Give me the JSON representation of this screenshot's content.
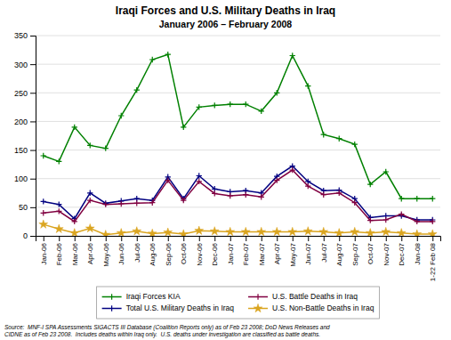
{
  "chart_data": {
    "type": "line",
    "title": "Iraqi Forces and U.S. Military Deaths in Iraq",
    "subtitle": "January 2006 – February 2008",
    "annotations": [
      "Source:  MNF-I SPA Assessments SIGACTS III Database (Coalition Reports only) as of Feb 23 2008; DoD News Releases and\nCIDNE as of Feb 23 2008.  Includes deaths within Iraq only.  U.S. deaths under investigation are classified as battle deaths."
    ],
    "categories": [
      "Jan-06",
      "Feb-06",
      "Mar-06",
      "Apr-06",
      "May-06",
      "Jun-06",
      "Jul-06",
      "Aug-06",
      "Sep-06",
      "Oct-06",
      "Nov-06",
      "Dec-06",
      "Jan-07",
      "Feb-07",
      "Mar-07",
      "Apr-07",
      "May-07",
      "Jun-07",
      "Jul-07",
      "Aug-07",
      "Sep-07",
      "Oct-07",
      "Nov-07",
      "Dec-07",
      "Jan-08",
      "1-22 Feb 08"
    ],
    "series": [
      {
        "name": "Iraqi Forces KIA",
        "color": "#008000",
        "marker": "plus",
        "values": [
          140,
          130,
          190,
          158,
          153,
          210,
          255,
          308,
          317,
          190,
          225,
          228,
          230,
          230,
          218,
          250,
          315,
          262,
          177,
          170,
          160,
          90,
          112,
          65,
          65,
          65
        ]
      },
      {
        "name": "Total U.S. Military Deaths in Iraq",
        "color": "#000080",
        "marker": "plus",
        "values": [
          60,
          55,
          30,
          75,
          57,
          61,
          65,
          62,
          103,
          65,
          105,
          82,
          77,
          79,
          75,
          104,
          122,
          95,
          79,
          80,
          65,
          32,
          35,
          35,
          28,
          28
        ]
      },
      {
        "name": "U.S. Battle Deaths in Iraq",
        "color": "#800040",
        "marker": "plus",
        "values": [
          40,
          43,
          25,
          62,
          55,
          56,
          57,
          58,
          97,
          62,
          95,
          74,
          70,
          72,
          68,
          97,
          115,
          87,
          72,
          75,
          58,
          27,
          28,
          38,
          25,
          25
        ]
      },
      {
        "name": "U.S. Non-Battle Deaths in Iraq",
        "color": "#DAA520",
        "marker": "star",
        "values": [
          20,
          12,
          5,
          13,
          2,
          5,
          8,
          4,
          6,
          3,
          9,
          8,
          7,
          7,
          7,
          7,
          7,
          8,
          7,
          5,
          7,
          5,
          7,
          5,
          3,
          3
        ]
      }
    ],
    "ylim": [
      0,
      350
    ],
    "yticks": [
      0,
      50,
      100,
      150,
      200,
      250,
      300,
      350
    ],
    "grid": true,
    "legend": "bottom"
  }
}
